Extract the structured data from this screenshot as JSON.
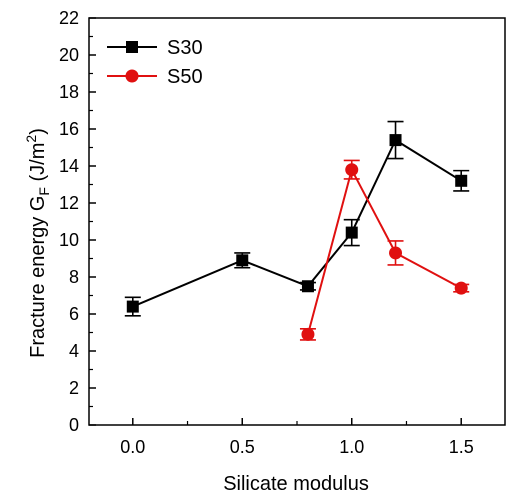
{
  "chart_data": {
    "type": "line",
    "xlabel": "Silicate modulus",
    "ylabel_parts": [
      "Fracture energy G",
      "F",
      " (J/m",
      "2",
      ")"
    ],
    "xlim": [
      -0.2,
      1.7
    ],
    "ylim": [
      0,
      22
    ],
    "x_ticks": [
      0.0,
      0.5,
      1.0,
      1.5
    ],
    "x_tick_labels": [
      "0.0",
      "0.5",
      "1.0",
      "1.5"
    ],
    "y_ticks": [
      0,
      2,
      4,
      6,
      8,
      10,
      12,
      14,
      16,
      18,
      20,
      22
    ],
    "y_tick_labels": [
      "0",
      "2",
      "4",
      "6",
      "8",
      "10",
      "12",
      "14",
      "16",
      "18",
      "20",
      "22"
    ],
    "grid": false,
    "legend_position": "top-left",
    "series": [
      {
        "name": "S30",
        "color": "#000000",
        "marker": "square",
        "x": [
          0.0,
          0.5,
          0.8,
          1.0,
          1.2,
          1.5
        ],
        "y": [
          6.4,
          8.9,
          7.5,
          10.4,
          15.4,
          13.2
        ],
        "err": [
          0.5,
          0.4,
          0.2,
          0.7,
          1.0,
          0.55
        ]
      },
      {
        "name": "S50",
        "color": "#e01010",
        "marker": "circle",
        "x": [
          0.8,
          1.0,
          1.2,
          1.5
        ],
        "y": [
          4.9,
          13.8,
          9.3,
          7.4
        ],
        "err": [
          0.3,
          0.5,
          0.65,
          0.2
        ]
      }
    ]
  }
}
